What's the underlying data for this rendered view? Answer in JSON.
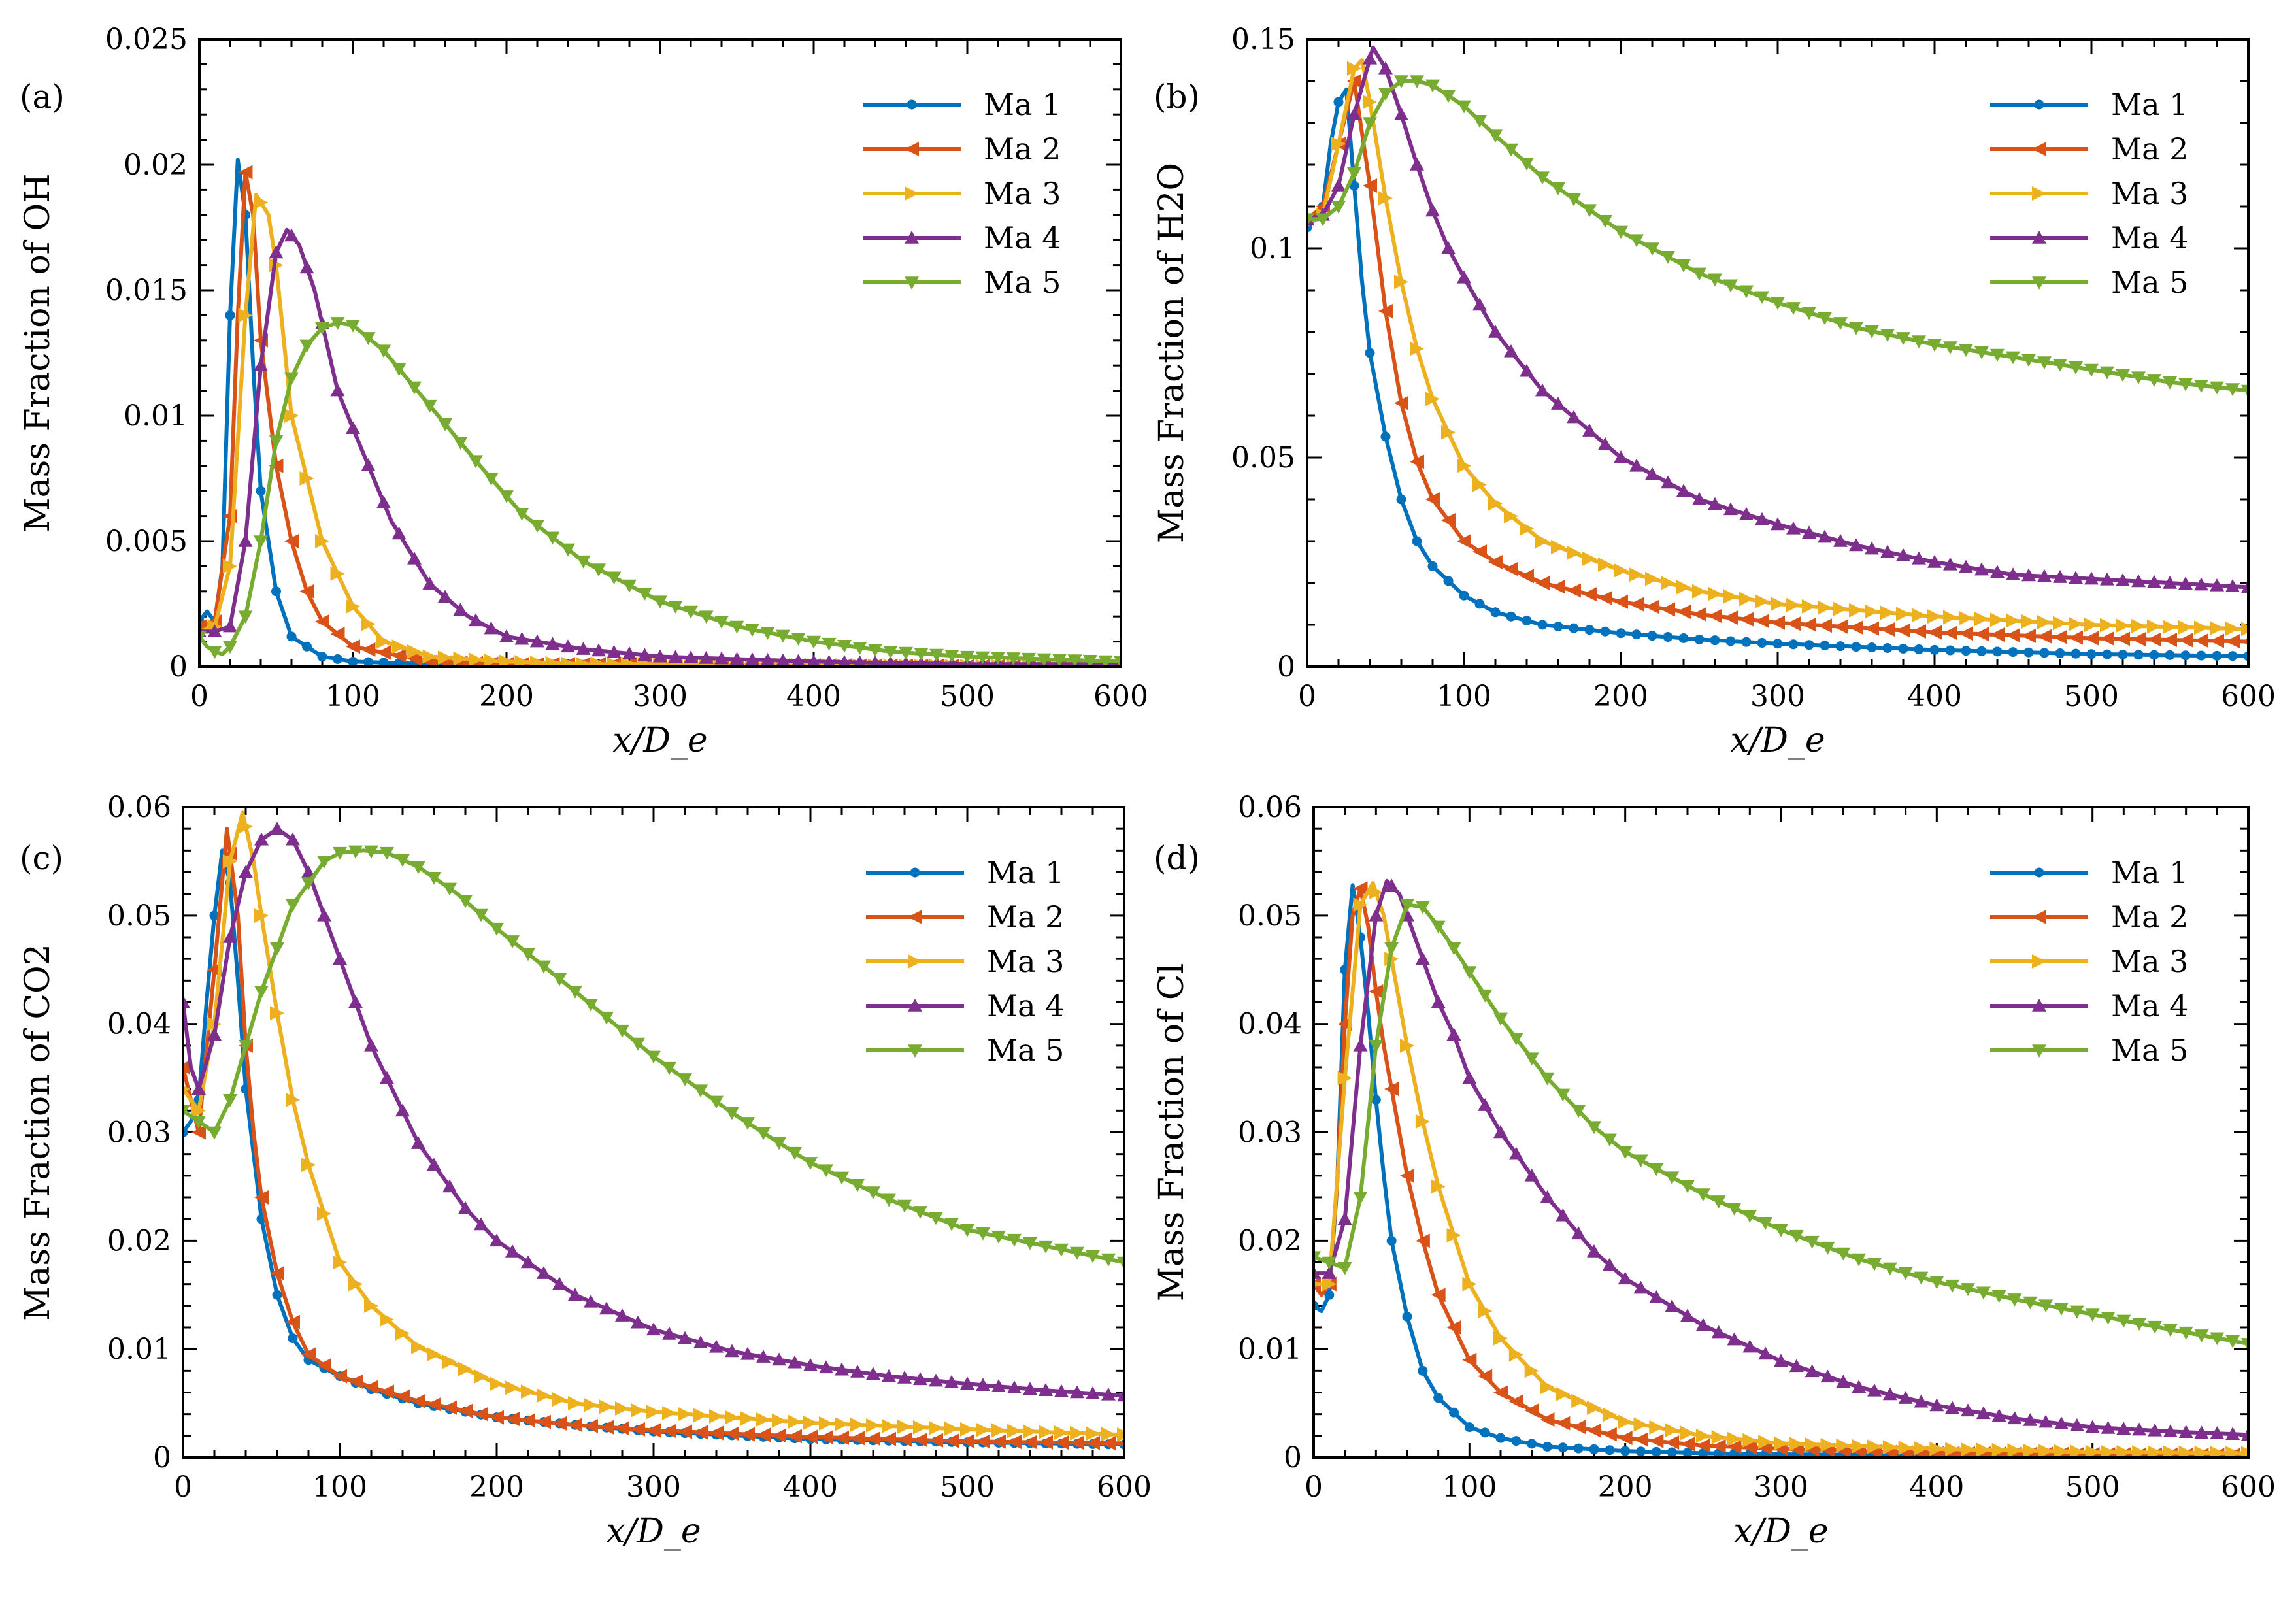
{
  "figure": {
    "series_names": [
      "Ma 1",
      "Ma 2",
      "Ma 3",
      "Ma 4",
      "Ma 5"
    ],
    "series_colors": [
      "#0072BD",
      "#D95319",
      "#EDB120",
      "#7E2F8E",
      "#77AC30"
    ],
    "series_markers": [
      "circle",
      "triangle-left",
      "triangle-right",
      "triangle-up",
      "triangle-down"
    ]
  },
  "chart_data": [
    {
      "type": "line",
      "panel": "(a)",
      "ylabel": "Mass Fraction of OH",
      "xlabel": "x/D_e",
      "xlim": [
        0,
        600
      ],
      "ylim": [
        0,
        0.025
      ],
      "xticks": [
        "0",
        "100",
        "200",
        "300",
        "400",
        "500",
        "600"
      ],
      "yticks": [
        "0",
        "0.005",
        "0.01",
        "0.015",
        "0.02",
        "0.025"
      ],
      "legend": "top-right",
      "series": [
        {
          "name": "Ma 1",
          "x": [
            0,
            5,
            10,
            15,
            20,
            25,
            30,
            35,
            40,
            50,
            60,
            80,
            100,
            150,
            200,
            300,
            400,
            500,
            600
          ],
          "y": [
            0.0018,
            0.0022,
            0.0018,
            0.004,
            0.014,
            0.0202,
            0.018,
            0.012,
            0.007,
            0.003,
            0.0012,
            0.0004,
            0.0002,
            0.0001,
            0.0001,
            5e-05,
            3e-05,
            2e-05,
            2e-05
          ]
        },
        {
          "name": "Ma 2",
          "x": [
            0,
            10,
            20,
            25,
            30,
            35,
            40,
            50,
            60,
            70,
            80,
            100,
            150,
            200,
            300,
            400,
            500,
            600
          ],
          "y": [
            0.0016,
            0.0018,
            0.006,
            0.014,
            0.0197,
            0.018,
            0.013,
            0.008,
            0.005,
            0.003,
            0.0018,
            0.0008,
            0.0002,
            0.0001,
            0.0001,
            5e-05,
            3e-05,
            3e-05
          ]
        },
        {
          "name": "Ma 3",
          "x": [
            0,
            10,
            20,
            30,
            37,
            45,
            50,
            60,
            70,
            80,
            100,
            120,
            150,
            200,
            250,
            300,
            400,
            500,
            600
          ],
          "y": [
            0.0014,
            0.0016,
            0.004,
            0.014,
            0.0188,
            0.018,
            0.016,
            0.01,
            0.0075,
            0.005,
            0.0024,
            0.001,
            0.0004,
            0.0002,
            0.0001,
            0.0001,
            5e-05,
            3e-05,
            3e-05
          ]
        },
        {
          "name": "Ma 4",
          "x": [
            0,
            10,
            20,
            30,
            40,
            50,
            57,
            65,
            75,
            90,
            100,
            125,
            150,
            175,
            200,
            250,
            300,
            350,
            400,
            500,
            600
          ],
          "y": [
            0.0014,
            0.0014,
            0.0016,
            0.005,
            0.012,
            0.0165,
            0.0174,
            0.0168,
            0.015,
            0.011,
            0.0095,
            0.0058,
            0.0033,
            0.002,
            0.0012,
            0.0007,
            0.0004,
            0.0003,
            0.0002,
            0.0001,
            0.0001
          ]
        },
        {
          "name": "Ma 5",
          "x": [
            0,
            5,
            10,
            15,
            20,
            30,
            40,
            50,
            60,
            70,
            80,
            90,
            100,
            120,
            150,
            180,
            210,
            250,
            300,
            350,
            400,
            450,
            500,
            550,
            600
          ],
          "y": [
            0.0012,
            0.0008,
            0.0006,
            0.0005,
            0.0008,
            0.002,
            0.005,
            0.009,
            0.0115,
            0.0128,
            0.0135,
            0.0137,
            0.0136,
            0.0126,
            0.0104,
            0.0082,
            0.0061,
            0.0042,
            0.0026,
            0.0016,
            0.001,
            0.0006,
            0.0004,
            0.0003,
            0.0002
          ]
        }
      ]
    },
    {
      "type": "line",
      "panel": "(b)",
      "ylabel": "Mass Fraction of H2O",
      "xlabel": "x/D_e",
      "xlim": [
        0,
        600
      ],
      "ylim": [
        0,
        0.15
      ],
      "xticks": [
        "0",
        "100",
        "200",
        "300",
        "400",
        "500",
        "600"
      ],
      "yticks": [
        "0",
        "0.05",
        "0.1",
        "0.15"
      ],
      "legend": "top-right",
      "series": [
        {
          "name": "Ma 1",
          "x": [
            0,
            5,
            10,
            15,
            20,
            25,
            30,
            35,
            40,
            50,
            60,
            70,
            80,
            100,
            120,
            150,
            200,
            250,
            300,
            400,
            500,
            600
          ],
          "y": [
            0.105,
            0.107,
            0.11,
            0.125,
            0.135,
            0.138,
            0.115,
            0.092,
            0.075,
            0.055,
            0.04,
            0.03,
            0.024,
            0.017,
            0.013,
            0.01,
            0.008,
            0.0065,
            0.0055,
            0.004,
            0.003,
            0.0025
          ]
        },
        {
          "name": "Ma 2",
          "x": [
            0,
            10,
            20,
            30,
            40,
            50,
            60,
            70,
            80,
            100,
            120,
            150,
            200,
            250,
            300,
            400,
            500,
            600
          ],
          "y": [
            0.107,
            0.11,
            0.125,
            0.14,
            0.115,
            0.085,
            0.063,
            0.049,
            0.04,
            0.03,
            0.025,
            0.02,
            0.0155,
            0.0125,
            0.0105,
            0.0082,
            0.0068,
            0.006
          ]
        },
        {
          "name": "Ma 3",
          "x": [
            0,
            10,
            20,
            30,
            35,
            40,
            50,
            60,
            70,
            80,
            100,
            120,
            150,
            200,
            250,
            300,
            400,
            500,
            600
          ],
          "y": [
            0.106,
            0.108,
            0.125,
            0.143,
            0.145,
            0.135,
            0.112,
            0.092,
            0.076,
            0.064,
            0.048,
            0.039,
            0.03,
            0.023,
            0.018,
            0.015,
            0.012,
            0.01,
            0.009
          ]
        },
        {
          "name": "Ma 4",
          "x": [
            0,
            10,
            20,
            30,
            42,
            50,
            60,
            70,
            80,
            90,
            100,
            120,
            150,
            200,
            250,
            300,
            350,
            400,
            450,
            500,
            550,
            600
          ],
          "y": [
            0.107,
            0.108,
            0.115,
            0.132,
            0.148,
            0.143,
            0.132,
            0.12,
            0.109,
            0.1,
            0.093,
            0.08,
            0.066,
            0.05,
            0.04,
            0.034,
            0.029,
            0.025,
            0.022,
            0.021,
            0.02,
            0.019
          ]
        },
        {
          "name": "Ma 5",
          "x": [
            0,
            10,
            20,
            30,
            40,
            50,
            60,
            70,
            80,
            100,
            120,
            150,
            200,
            250,
            300,
            350,
            400,
            450,
            500,
            550,
            600
          ],
          "y": [
            0.107,
            0.107,
            0.11,
            0.118,
            0.13,
            0.137,
            0.14,
            0.14,
            0.139,
            0.134,
            0.127,
            0.117,
            0.104,
            0.094,
            0.087,
            0.081,
            0.077,
            0.074,
            0.071,
            0.068,
            0.066
          ]
        }
      ]
    },
    {
      "type": "line",
      "panel": "(c)",
      "ylabel": "Mass Fraction of CO2",
      "xlabel": "x/D_e",
      "xlim": [
        0,
        600
      ],
      "ylim": [
        0,
        0.06
      ],
      "xticks": [
        "0",
        "100",
        "200",
        "300",
        "400",
        "500",
        "600"
      ],
      "yticks": [
        "0",
        "0.01",
        "0.02",
        "0.03",
        "0.04",
        "0.05",
        "0.06"
      ],
      "legend": "top-right",
      "series": [
        {
          "name": "Ma 1",
          "x": [
            0,
            5,
            10,
            15,
            20,
            25,
            30,
            35,
            40,
            45,
            50,
            60,
            70,
            80,
            100,
            120,
            150,
            200,
            250,
            300,
            400,
            500,
            600
          ],
          "y": [
            0.03,
            0.031,
            0.033,
            0.042,
            0.05,
            0.056,
            0.053,
            0.044,
            0.034,
            0.028,
            0.022,
            0.015,
            0.011,
            0.009,
            0.0075,
            0.0063,
            0.005,
            0.0037,
            0.003,
            0.0024,
            0.0017,
            0.0014,
            0.0012
          ]
        },
        {
          "name": "Ma 2",
          "x": [
            0,
            10,
            20,
            28,
            35,
            40,
            45,
            50,
            60,
            70,
            80,
            100,
            120,
            150,
            200,
            250,
            300,
            400,
            500,
            600
          ],
          "y": [
            0.036,
            0.03,
            0.045,
            0.058,
            0.05,
            0.038,
            0.03,
            0.024,
            0.017,
            0.0125,
            0.0095,
            0.0075,
            0.0065,
            0.0052,
            0.0037,
            0.003,
            0.0025,
            0.0019,
            0.0015,
            0.0013
          ]
        },
        {
          "name": "Ma 3",
          "x": [
            0,
            5,
            10,
            20,
            30,
            38,
            45,
            50,
            60,
            70,
            80,
            100,
            120,
            150,
            200,
            250,
            300,
            400,
            500,
            600
          ],
          "y": [
            0.034,
            0.033,
            0.032,
            0.04,
            0.055,
            0.0595,
            0.055,
            0.05,
            0.041,
            0.033,
            0.027,
            0.018,
            0.014,
            0.0102,
            0.0068,
            0.005,
            0.0042,
            0.0032,
            0.0026,
            0.0021
          ]
        },
        {
          "name": "Ma 4",
          "x": [
            0,
            5,
            10,
            20,
            30,
            40,
            50,
            60,
            70,
            80,
            90,
            100,
            120,
            150,
            180,
            200,
            250,
            300,
            350,
            400,
            450,
            500,
            550,
            600
          ],
          "y": [
            0.042,
            0.036,
            0.034,
            0.039,
            0.048,
            0.054,
            0.057,
            0.058,
            0.057,
            0.054,
            0.05,
            0.046,
            0.038,
            0.029,
            0.023,
            0.02,
            0.015,
            0.0118,
            0.0098,
            0.0085,
            0.0075,
            0.0068,
            0.0062,
            0.0057
          ]
        },
        {
          "name": "Ma 5",
          "x": [
            0,
            10,
            20,
            30,
            40,
            50,
            60,
            70,
            80,
            90,
            100,
            115,
            130,
            150,
            175,
            200,
            250,
            300,
            350,
            400,
            450,
            500,
            550,
            600
          ],
          "y": [
            0.032,
            0.031,
            0.03,
            0.033,
            0.038,
            0.043,
            0.047,
            0.051,
            0.053,
            0.055,
            0.0558,
            0.056,
            0.0558,
            0.0545,
            0.052,
            0.0488,
            0.043,
            0.037,
            0.0318,
            0.0272,
            0.0238,
            0.021,
            0.0195,
            0.018
          ]
        }
      ]
    },
    {
      "type": "line",
      "panel": "(d)",
      "ylabel": "Mass Fraction of Cl",
      "xlabel": "x/D_e",
      "xlim": [
        0,
        600
      ],
      "ylim": [
        0,
        0.06
      ],
      "xticks": [
        "0",
        "100",
        "200",
        "300",
        "400",
        "500",
        "600"
      ],
      "yticks": [
        "0",
        "0.01",
        "0.02",
        "0.03",
        "0.04",
        "0.05",
        "0.06"
      ],
      "legend": "top-right",
      "series": [
        {
          "name": "Ma 1",
          "x": [
            0,
            5,
            10,
            15,
            20,
            25,
            30,
            35,
            40,
            45,
            50,
            60,
            70,
            80,
            100,
            120,
            150,
            200,
            250,
            300,
            400,
            500,
            600
          ],
          "y": [
            0.014,
            0.0135,
            0.015,
            0.025,
            0.045,
            0.0528,
            0.048,
            0.041,
            0.033,
            0.026,
            0.02,
            0.013,
            0.008,
            0.0055,
            0.0028,
            0.0018,
            0.001,
            0.0006,
            0.0004,
            0.0003,
            0.0002,
            0.0001,
            0.0001
          ]
        },
        {
          "name": "Ma 2",
          "x": [
            0,
            5,
            10,
            15,
            20,
            25,
            30,
            35,
            40,
            45,
            50,
            60,
            70,
            80,
            100,
            120,
            150,
            200,
            250,
            300,
            400,
            500,
            600
          ],
          "y": [
            0.016,
            0.015,
            0.016,
            0.025,
            0.04,
            0.05,
            0.0525,
            0.049,
            0.043,
            0.038,
            0.034,
            0.026,
            0.02,
            0.015,
            0.009,
            0.006,
            0.0035,
            0.0018,
            0.0011,
            0.0008,
            0.0004,
            0.0003,
            0.0002
          ]
        },
        {
          "name": "Ma 3",
          "x": [
            0,
            10,
            20,
            30,
            38,
            45,
            50,
            60,
            70,
            80,
            100,
            120,
            150,
            200,
            250,
            300,
            400,
            500,
            600
          ],
          "y": [
            0.016,
            0.016,
            0.035,
            0.051,
            0.053,
            0.05,
            0.046,
            0.038,
            0.031,
            0.025,
            0.016,
            0.011,
            0.0065,
            0.0033,
            0.002,
            0.0013,
            0.0008,
            0.0005,
            0.0004
          ]
        },
        {
          "name": "Ma 4",
          "x": [
            0,
            10,
            20,
            30,
            40,
            47,
            55,
            60,
            70,
            80,
            90,
            100,
            120,
            150,
            180,
            200,
            250,
            300,
            350,
            400,
            450,
            500,
            550,
            600
          ],
          "y": [
            0.017,
            0.017,
            0.022,
            0.038,
            0.05,
            0.0532,
            0.052,
            0.05,
            0.046,
            0.042,
            0.039,
            0.035,
            0.03,
            0.024,
            0.019,
            0.0165,
            0.0122,
            0.0089,
            0.0065,
            0.0048,
            0.0036,
            0.0028,
            0.0024,
            0.0021
          ]
        },
        {
          "name": "Ma 5",
          "x": [
            0,
            10,
            20,
            30,
            40,
            50,
            60,
            70,
            80,
            90,
            100,
            120,
            150,
            180,
            200,
            250,
            300,
            350,
            400,
            450,
            500,
            550,
            600
          ],
          "y": [
            0.0185,
            0.018,
            0.0175,
            0.024,
            0.038,
            0.047,
            0.051,
            0.0508,
            0.049,
            0.047,
            0.0448,
            0.0405,
            0.035,
            0.0305,
            0.0282,
            0.0243,
            0.021,
            0.0183,
            0.0162,
            0.0146,
            0.0132,
            0.0118,
            0.0105
          ]
        }
      ]
    }
  ]
}
